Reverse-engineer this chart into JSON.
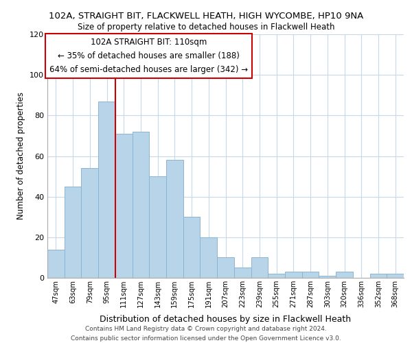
{
  "title": "102A, STRAIGHT BIT, FLACKWELL HEATH, HIGH WYCOMBE, HP10 9NA",
  "subtitle": "Size of property relative to detached houses in Flackwell Heath",
  "xlabel": "Distribution of detached houses by size in Flackwell Heath",
  "ylabel": "Number of detached properties",
  "bin_labels": [
    "47sqm",
    "63sqm",
    "79sqm",
    "95sqm",
    "111sqm",
    "127sqm",
    "143sqm",
    "159sqm",
    "175sqm",
    "191sqm",
    "207sqm",
    "223sqm",
    "239sqm",
    "255sqm",
    "271sqm",
    "287sqm",
    "303sqm",
    "320sqm",
    "336sqm",
    "352sqm",
    "368sqm"
  ],
  "bar_heights": [
    14,
    45,
    54,
    87,
    71,
    72,
    50,
    58,
    30,
    20,
    10,
    5,
    10,
    2,
    3,
    3,
    1,
    3,
    0,
    2,
    2
  ],
  "bar_color": "#b8d4e8",
  "bar_edgecolor": "#8ab4d4",
  "vline_x": 4.0,
  "vline_color": "#cc0000",
  "annotation_text": "102A STRAIGHT BIT: 110sqm\n← 35% of detached houses are smaller (188)\n64% of semi-detached houses are larger (342) →",
  "ylim": [
    0,
    120
  ],
  "yticks": [
    0,
    20,
    40,
    60,
    80,
    100,
    120
  ],
  "footer_line1": "Contains HM Land Registry data © Crown copyright and database right 2024.",
  "footer_line2": "Contains public sector information licensed under the Open Government Licence v3.0.",
  "background_color": "#ffffff",
  "grid_color": "#c8d8e8"
}
